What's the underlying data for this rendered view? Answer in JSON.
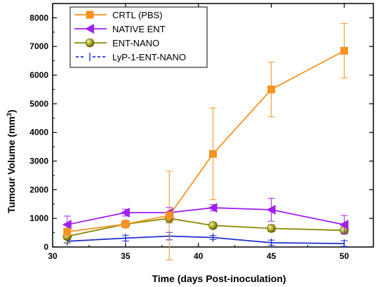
{
  "chart_data": {
    "type": "line",
    "title": "",
    "xlabel": "Time (days Post-inoculation)",
    "ylabel": "Tumour Volume (mm",
    "ylabel_sup": "3",
    "ylabel_close": ")",
    "xlim": [
      30,
      52
    ],
    "ylim": [
      0,
      8500
    ],
    "xticks": [
      30,
      35,
      40,
      45,
      50
    ],
    "yticks": [
      0,
      1000,
      2000,
      3000,
      4000,
      5000,
      6000,
      7000,
      8000
    ],
    "legend_position": "top-left",
    "x": [
      31,
      35,
      38,
      41,
      45,
      50
    ],
    "series": [
      {
        "name": "CRTL (PBS)",
        "color": "#f7931e",
        "marker": "square",
        "values": [
          530,
          800,
          1100,
          3250,
          5500,
          6850
        ],
        "errors": [
          100,
          130,
          1550,
          1600,
          950,
          950
        ]
      },
      {
        "name": "NATIVE ENT",
        "color": "#a020f0",
        "marker": "triangle-left",
        "values": [
          780,
          1200,
          1200,
          1370,
          1300,
          780
        ],
        "errors": [
          300,
          120,
          180,
          110,
          400,
          320
        ]
      },
      {
        "name": "ENT-NANO",
        "color": "#8a8a00",
        "marker": "sphere",
        "values": [
          370,
          800,
          1000,
          750,
          650,
          580
        ],
        "errors": [
          220,
          130,
          160,
          100,
          120,
          130
        ]
      },
      {
        "name": "LyP-1-ENT-NANO",
        "color": "#1f2fd0",
        "marker": "tick",
        "values": [
          200,
          310,
          380,
          330,
          150,
          120
        ],
        "errors": [
          60,
          100,
          130,
          70,
          90,
          100
        ]
      }
    ]
  }
}
